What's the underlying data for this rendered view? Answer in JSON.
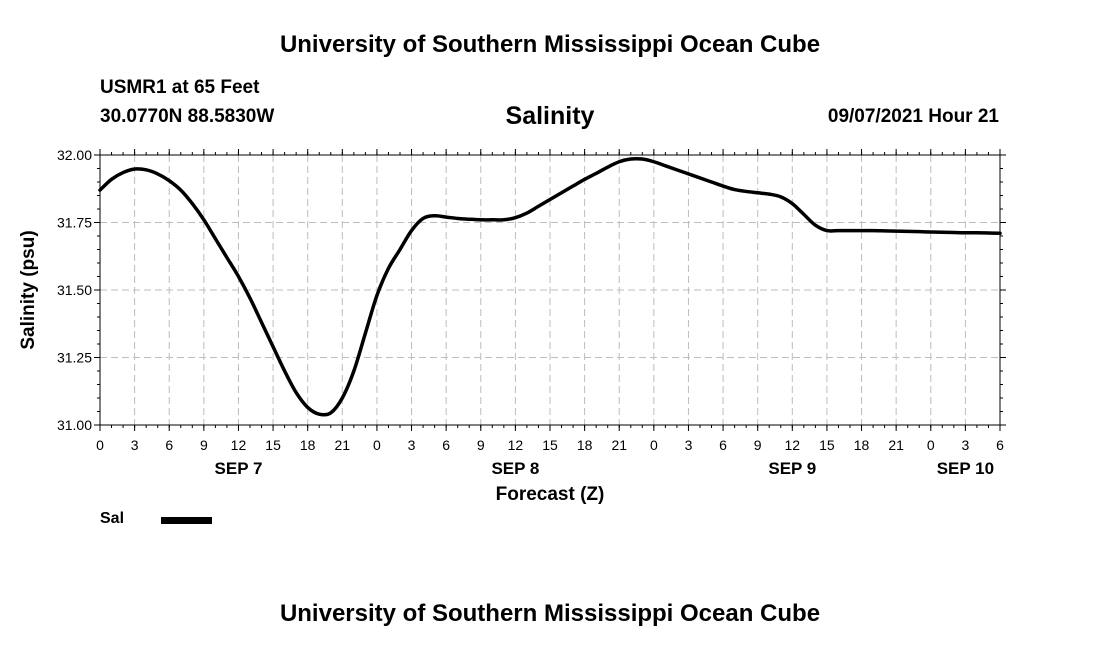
{
  "header": {
    "title": "University of Southern Mississippi Ocean Cube",
    "station": "USMR1 at 65 Feet",
    "coordinates": "30.0770N  88.5830W",
    "datetime": "09/07/2021 Hour 21"
  },
  "footer": {
    "title": "University of Southern Mississippi Ocean Cube"
  },
  "legend": {
    "label": "Sal",
    "color": "#000000"
  },
  "chart_data": {
    "type": "line",
    "title": "Salinity",
    "xlabel": "Forecast (Z)",
    "ylabel": "Salinity (psu)",
    "ylim": [
      31.0,
      32.0
    ],
    "xlim": [
      0,
      78
    ],
    "grid": true,
    "legend_position": "bottom-left",
    "y_ticks": [
      "31.00",
      "31.25",
      "31.50",
      "31.75",
      "32.00"
    ],
    "x_ticks": [
      "0",
      "3",
      "6",
      "9",
      "12",
      "15",
      "18",
      "21",
      "0",
      "3",
      "6",
      "9",
      "12",
      "15",
      "18",
      "21",
      "0",
      "3",
      "6",
      "9",
      "12",
      "15",
      "18",
      "21",
      "0",
      "3",
      "6"
    ],
    "x_tick_unit_hours": 3,
    "day_labels": [
      {
        "label": "SEP 7",
        "hour": 12
      },
      {
        "label": "SEP 8",
        "hour": 36
      },
      {
        "label": "SEP 9",
        "hour": 60
      },
      {
        "label": "SEP 10",
        "hour": 75
      }
    ],
    "series": [
      {
        "name": "Sal",
        "color": "#000000",
        "x": [
          0,
          1,
          2,
          3,
          4,
          5,
          6,
          7,
          8,
          9,
          10,
          11,
          12,
          13,
          14,
          15,
          16,
          17,
          18,
          19,
          20,
          21,
          22,
          23,
          24,
          25,
          26,
          27,
          28,
          29,
          30,
          31,
          32,
          33,
          34,
          35,
          36,
          37,
          38,
          39,
          40,
          41,
          42,
          43,
          44,
          45,
          46,
          47,
          48,
          49,
          50,
          51,
          52,
          53,
          54,
          55,
          56,
          57,
          58,
          59,
          60,
          61,
          62,
          63,
          64,
          65,
          66,
          67,
          68,
          69,
          70,
          71,
          72,
          73,
          74,
          75,
          76,
          77,
          78
        ],
        "values": [
          31.87,
          31.91,
          31.935,
          31.948,
          31.945,
          31.93,
          31.905,
          31.87,
          31.82,
          31.76,
          31.69,
          31.62,
          31.55,
          31.47,
          31.38,
          31.29,
          31.2,
          31.12,
          31.065,
          31.04,
          31.045,
          31.1,
          31.2,
          31.34,
          31.48,
          31.58,
          31.65,
          31.72,
          31.765,
          31.775,
          31.77,
          31.765,
          31.762,
          31.76,
          31.76,
          31.76,
          31.768,
          31.785,
          31.81,
          31.835,
          31.86,
          31.885,
          31.91,
          31.932,
          31.955,
          31.975,
          31.985,
          31.985,
          31.975,
          31.96,
          31.945,
          31.93,
          31.915,
          31.9,
          31.885,
          31.872,
          31.865,
          31.86,
          31.855,
          31.845,
          31.82,
          31.78,
          31.74,
          31.72,
          31.72,
          31.72,
          31.72,
          31.72,
          31.719,
          31.718,
          31.717,
          31.716,
          31.715,
          31.714,
          31.713,
          31.712,
          31.712,
          31.711,
          31.71
        ]
      }
    ]
  }
}
